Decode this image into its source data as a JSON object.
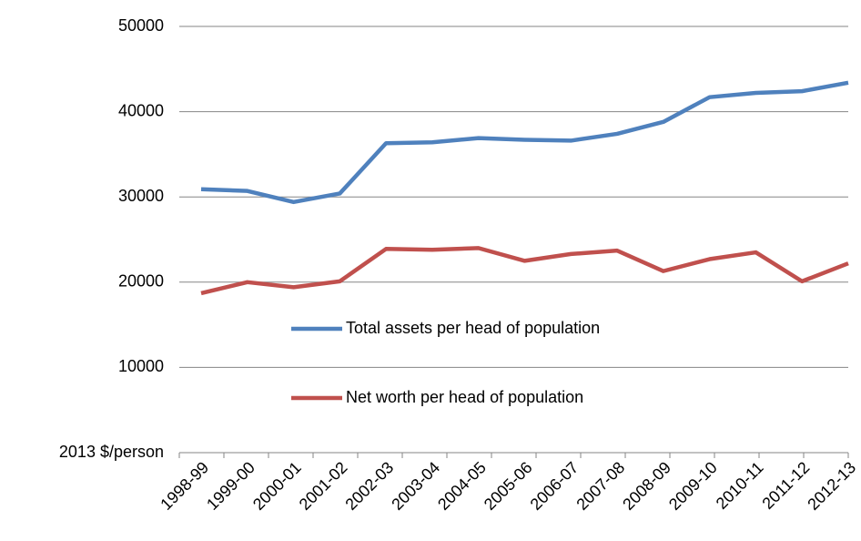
{
  "chart_data": {
    "type": "line",
    "categories": [
      "1998-99",
      "1999-00",
      "2000-01",
      "2001-02",
      "2002-03",
      "2003-04",
      "2004-05",
      "2005-06",
      "2006-07",
      "2007-08",
      "2008-09",
      "2009-10",
      "2010-11",
      "2011-12",
      "2012-13"
    ],
    "series": [
      {
        "name": "Total assets per head of population",
        "color": "#4f81bd",
        "values": [
          30900,
          30700,
          29400,
          30400,
          36300,
          36400,
          36900,
          36700,
          36600,
          37400,
          38800,
          41700,
          42200,
          42400,
          43400
        ]
      },
      {
        "name": "Net worth per head of population",
        "color": "#c0504d",
        "values": [
          18700,
          20000,
          19400,
          20100,
          23900,
          23800,
          24000,
          22500,
          23300,
          23700,
          21300,
          22700,
          23500,
          20100,
          22200
        ]
      }
    ],
    "ylim": [
      0,
      50000
    ],
    "yticks": [
      {
        "value": 0,
        "label": "2013 $/person"
      },
      10000,
      20000,
      30000,
      40000,
      50000
    ],
    "grid": true
  }
}
